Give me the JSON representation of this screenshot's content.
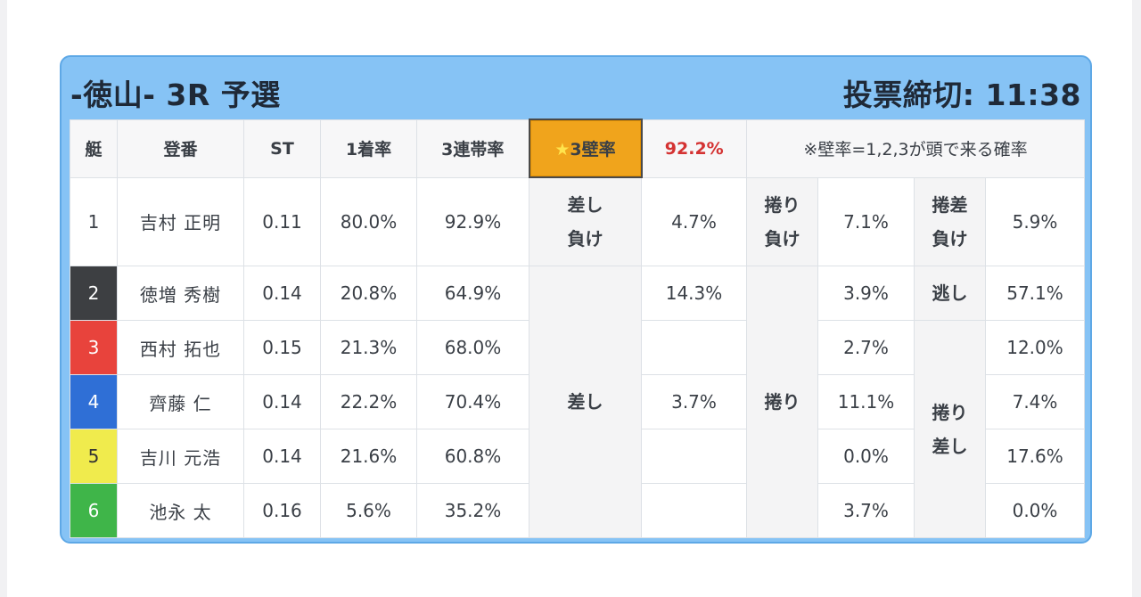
{
  "race": {
    "title": "-徳山- 3R 予選",
    "deadline": "投票締切: 11:38"
  },
  "header": {
    "lane": "艇",
    "racer": "登番",
    "st": "ST",
    "win_rate": "1着率",
    "top3_rate": "3連帯率",
    "wall_label": "3壁率",
    "wall_star": "★",
    "wall_rate": "92.2%",
    "note": "※壁率=1,2,3が頭で来る確率"
  },
  "colors": {
    "lane1": "#ffffff",
    "lane2": "#3d3f42",
    "lane3": "#e8433c",
    "lane4": "#2f6fd6",
    "lane5": "#f0eb4d",
    "lane6": "#3fb549",
    "frame": "#86c3f5",
    "wall_badge": "#f0a41c",
    "rate_red": "#d43232"
  },
  "rows": [
    {
      "lane": "1",
      "name": "吉村 正明",
      "st": "0.11",
      "win": "80.0%",
      "top3": "92.9%"
    },
    {
      "lane": "2",
      "name": "徳増 秀樹",
      "st": "0.14",
      "win": "20.8%",
      "top3": "64.9%"
    },
    {
      "lane": "3",
      "name": "西村 拓也",
      "st": "0.15",
      "win": "21.3%",
      "top3": "68.0%"
    },
    {
      "lane": "4",
      "name": "齊藤 仁",
      "st": "0.14",
      "win": "22.2%",
      "top3": "70.4%"
    },
    {
      "lane": "5",
      "name": "吉川 元浩",
      "st": "0.14",
      "win": "21.6%",
      "top3": "60.8%"
    },
    {
      "lane": "6",
      "name": "池永 太",
      "st": "0.16",
      "win": "5.6%",
      "top3": "35.2%"
    }
  ],
  "patterns": {
    "sashi_make": {
      "label_line1": "差し",
      "label_line2": "負け",
      "value": "4.7%"
    },
    "makuri_make": {
      "label_line1": "捲り",
      "label_line2": "負け",
      "value": "7.1%"
    },
    "makurisashi_make": {
      "label_line1": "捲差",
      "label_line2": "負け",
      "value": "5.9%"
    },
    "nige": {
      "label": "逃し",
      "value": "57.1%"
    },
    "sashi": {
      "label": "差し",
      "values": [
        "14.3%",
        "",
        "3.7%",
        "",
        ""
      ]
    },
    "makuri": {
      "label": "捲り",
      "values": [
        "3.9%",
        "2.7%",
        "11.1%",
        "0.0%",
        "3.7%"
      ]
    },
    "makurisashi": {
      "label_line1": "捲り",
      "label_line2": "差し",
      "values": [
        "12.0%",
        "7.4%",
        "17.6%",
        "0.0%"
      ]
    }
  }
}
